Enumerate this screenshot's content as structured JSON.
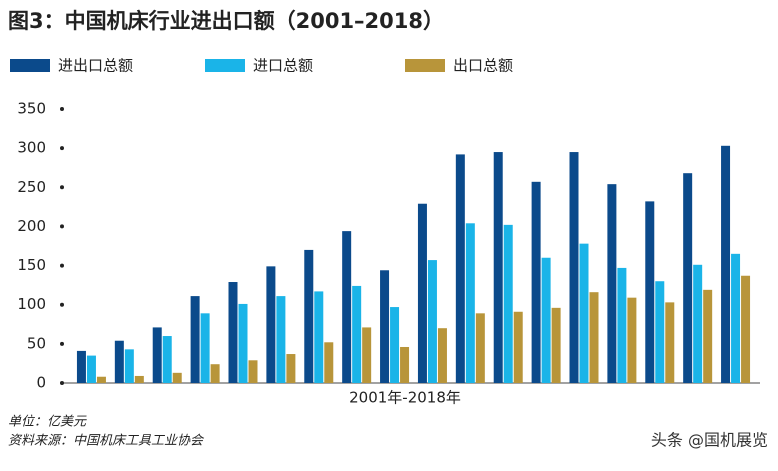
{
  "chart_data": {
    "type": "bar",
    "title": "图3：中国机床行业进出口额（2001–2018）",
    "x_label": "2001年-2018年",
    "notes": [
      "单位：亿美元",
      "资料来源：中国机床工具工业协会"
    ],
    "watermark": "头条 @国机展览",
    "categories": [
      null,
      null,
      null,
      null,
      null,
      null,
      null,
      null,
      null,
      null,
      null,
      null,
      null,
      null,
      null,
      null,
      null,
      null
    ],
    "series": [
      {
        "name": "进出口总额",
        "color": "#0b4a8b",
        "values": [
          41,
          54,
          71,
          111,
          129,
          149,
          170,
          194,
          144,
          229,
          292,
          295,
          257,
          295,
          254,
          232,
          268,
          303
        ]
      },
      {
        "name": "进口总额",
        "color": "#1ab4e8",
        "values": [
          35,
          43,
          60,
          89,
          101,
          111,
          117,
          124,
          97,
          157,
          204,
          202,
          160,
          178,
          147,
          130,
          151,
          165
        ]
      },
      {
        "name": "出口总额",
        "color": "#b8953a",
        "values": [
          8,
          9,
          13,
          24,
          29,
          37,
          52,
          71,
          46,
          70,
          89,
          91,
          96,
          116,
          109,
          103,
          119,
          137
        ]
      }
    ],
    "ylim": [
      0,
      350
    ],
    "yticks": [
      0,
      50,
      100,
      150,
      200,
      250,
      300,
      350
    ],
    "legend": "top"
  }
}
